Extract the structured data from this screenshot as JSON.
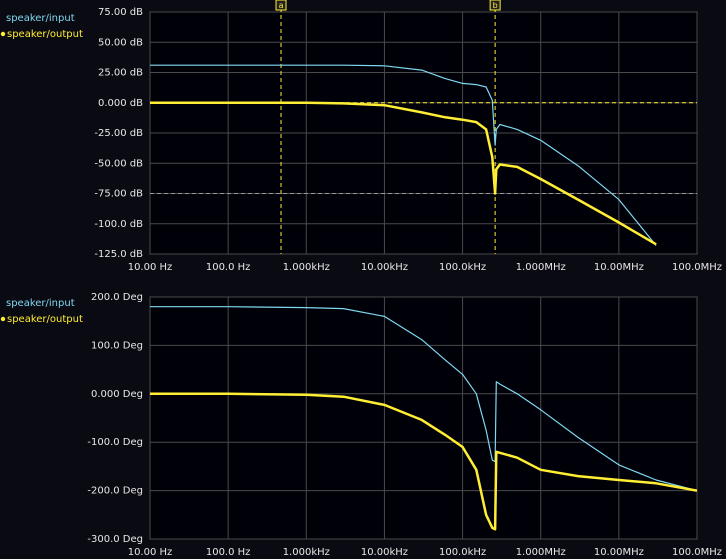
{
  "chart_data": [
    {
      "type": "line",
      "xscale": "log",
      "grid": true,
      "x": [
        10,
        100,
        1000,
        3000,
        10000,
        30000,
        60000,
        100000,
        150000,
        200000,
        240000,
        261000,
        270000,
        300000,
        500000,
        1000000,
        3000000,
        10000000,
        30000000,
        100000000
      ],
      "series": [
        {
          "name": "speaker/input",
          "color": "#7fd8f0",
          "values": [
            31,
            31,
            31,
            31,
            30.5,
            27,
            20,
            16,
            15,
            13,
            2,
            -35,
            -22,
            -18,
            -22,
            -31,
            -52,
            -80,
            -118,
            null
          ]
        },
        {
          "name": "speaker/output",
          "color": "#ffee33",
          "values": [
            0,
            0,
            0,
            -0.5,
            -2,
            -8,
            -12,
            -14,
            -16,
            -22,
            -45,
            -75,
            -55,
            -51,
            -53,
            -63,
            -80,
            -99,
            -117,
            null
          ]
        }
      ],
      "xlim": [
        10,
        100000000
      ],
      "xticks": [
        {
          "value": 10,
          "label": "10.00 Hz"
        },
        {
          "value": 100,
          "label": "100.0 Hz"
        },
        {
          "value": 1000,
          "label": "1.000kHz"
        },
        {
          "value": 10000,
          "label": "10.00kHz"
        },
        {
          "value": 100000,
          "label": "100.0kHz"
        },
        {
          "value": 1000000,
          "label": "1.000MHz"
        },
        {
          "value": 10000000,
          "label": "10.00MHz"
        },
        {
          "value": 100000000,
          "label": "100.0MHz"
        }
      ],
      "ylim": [
        -125,
        75
      ],
      "yticks": [
        {
          "value": -125,
          "label": "-125.0 dB"
        },
        {
          "value": -100,
          "label": "-100.0 dB"
        },
        {
          "value": -75,
          "label": "-75.00 dB"
        },
        {
          "value": -50,
          "label": "-50.00 dB"
        },
        {
          "value": -25,
          "label": "-25.00 dB"
        },
        {
          "value": 0,
          "label": "0.000 dB"
        },
        {
          "value": 25,
          "label": "25.00 dB"
        },
        {
          "value": 50,
          "label": "50.00 dB"
        },
        {
          "value": 75,
          "label": "75.00 dB"
        }
      ],
      "cursors": [
        {
          "label": "a",
          "x": 475
        },
        {
          "label": "b",
          "x": 261000
        }
      ],
      "hcursors": [
        0,
        -75
      ]
    },
    {
      "type": "line",
      "xscale": "log",
      "grid": true,
      "x": [
        10,
        100,
        1000,
        3000,
        10000,
        30000,
        60000,
        100000,
        150000,
        200000,
        240000,
        261000,
        270000,
        300000,
        500000,
        1000000,
        3000000,
        10000000,
        30000000,
        100000000
      ],
      "series": [
        {
          "name": "speaker/input",
          "color": "#7fd8f0",
          "values": [
            180,
            180,
            178,
            176,
            160,
            112,
            70,
            40,
            0,
            -75,
            -137,
            -140,
            25,
            20,
            0,
            -33,
            -90,
            -147,
            -178,
            -200
          ]
        },
        {
          "name": "speaker/output",
          "color": "#ffee33",
          "values": [
            0,
            0,
            -2,
            -6,
            -23,
            -54,
            -85,
            -110,
            -157,
            -250,
            -277,
            -280,
            -120,
            -122,
            -132,
            -157,
            -170,
            -178,
            -185,
            -200
          ]
        }
      ],
      "xlim": [
        10,
        100000000
      ],
      "xticks": [
        {
          "value": 10,
          "label": "10.00 Hz"
        },
        {
          "value": 100,
          "label": "100.0 Hz"
        },
        {
          "value": 1000,
          "label": "1.000kHz"
        },
        {
          "value": 10000,
          "label": "10.00kHz"
        },
        {
          "value": 100000,
          "label": "100.0kHz"
        },
        {
          "value": 1000000,
          "label": "1.000MHz"
        },
        {
          "value": 10000000,
          "label": "10.00MHz"
        },
        {
          "value": 100000000,
          "label": "100.0MHz"
        }
      ],
      "ylim": [
        -300,
        200
      ],
      "yticks": [
        {
          "value": -300,
          "label": "-300.0 Deg"
        },
        {
          "value": -200,
          "label": "-200.0 Deg"
        },
        {
          "value": -100,
          "label": "-100.0 Deg"
        },
        {
          "value": 0,
          "label": "0.000 Deg"
        },
        {
          "value": 100,
          "label": "100.0 Deg"
        },
        {
          "value": 200,
          "label": "200.0 Deg"
        }
      ]
    }
  ]
}
